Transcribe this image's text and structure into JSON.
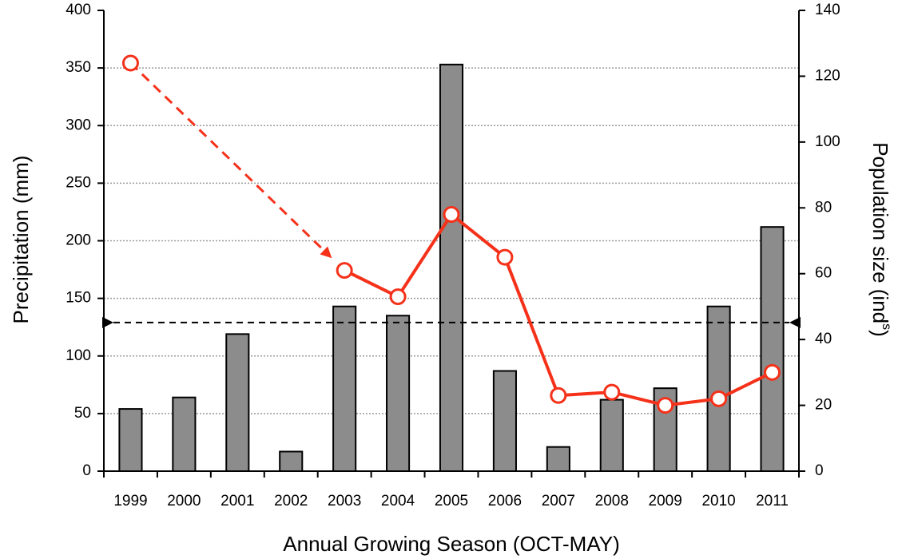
{
  "chart_data": {
    "type": "bar-line",
    "xlabel": "Annual Growing Season (OCT-MAY)",
    "ylabel": "Precipitation (mm)",
    "y2label": [
      "Population size (ind",
      "s",
      ")"
    ],
    "categories": [
      "1999",
      "2000",
      "2001",
      "2002",
      "2003",
      "2004",
      "2005",
      "2006",
      "2007",
      "2008",
      "2009",
      "2010",
      "2011"
    ],
    "series": [
      {
        "type": "bar",
        "color": "#8c8c8c",
        "values": [
          54,
          64,
          119,
          17,
          143,
          135,
          353,
          87,
          21,
          62,
          72,
          143,
          212
        ]
      },
      {
        "type": "line",
        "axis": "y2",
        "color": "#f5311a",
        "values": [
          124,
          null,
          null,
          null,
          61,
          53,
          78,
          65,
          23,
          24,
          20,
          22,
          30
        ]
      }
    ],
    "ylim": [
      0,
      400
    ],
    "yticks": [
      0,
      50,
      100,
      150,
      200,
      250,
      300,
      350,
      400
    ],
    "y2lim": [
      0,
      140
    ],
    "y2ticks": [
      0,
      20,
      40,
      60,
      80,
      100,
      120,
      140
    ],
    "grid": true,
    "reference_line": {
      "value": 129,
      "axis": "y"
    }
  }
}
